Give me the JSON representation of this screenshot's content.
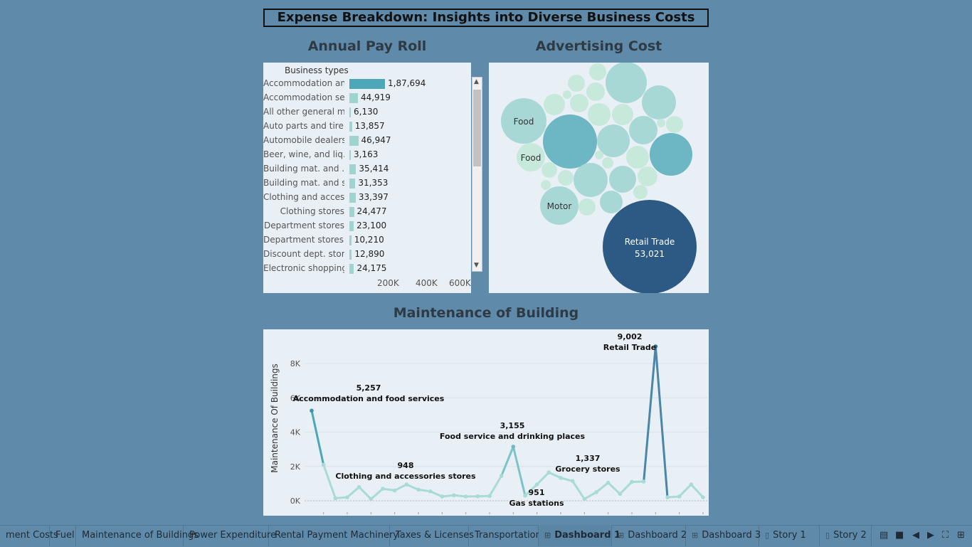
{
  "title": "Expense Breakdown: Insights into Diverse Business Costs",
  "payroll": {
    "title": "Annual Pay Roll",
    "header": "Business types",
    "axis_ticks": [
      "200K",
      "400K",
      "600K"
    ],
    "rows": [
      {
        "label": "Accommodation an..",
        "value": 187694,
        "text": "1,87,694"
      },
      {
        "label": "Accommodation se..",
        "value": 44919,
        "text": "44,919"
      },
      {
        "label": "All other general m..",
        "value": 6130,
        "text": "6,130"
      },
      {
        "label": "Auto parts and tire..",
        "value": 13857,
        "text": "13,857"
      },
      {
        "label": "Automobile dealers",
        "value": 46947,
        "text": "46,947"
      },
      {
        "label": "Beer, wine, and liq..",
        "value": 3163,
        "text": "3,163"
      },
      {
        "label": "Building mat. and ..",
        "value": 35414,
        "text": "35,414"
      },
      {
        "label": "Building mat. and s..",
        "value": 31353,
        "text": "31,353"
      },
      {
        "label": "Clothing and acces..",
        "value": 33397,
        "text": "33,397"
      },
      {
        "label": "Clothing stores",
        "value": 24477,
        "text": "24,477"
      },
      {
        "label": "Department stores",
        "value": 23100,
        "text": "23,100"
      },
      {
        "label": "Department stores..",
        "value": 10210,
        "text": "10,210"
      },
      {
        "label": "Discount dept. stor..",
        "value": 12890,
        "text": "12,890"
      },
      {
        "label": "Electronic shopping",
        "value": 24175,
        "text": "24,175"
      }
    ],
    "colors": {
      "highlight": "#4ea6b9",
      "bar": "#9fd3cd"
    }
  },
  "advertising": {
    "title": "Advertising Cost",
    "labels": {
      "food1": "Food",
      "food2": "Food",
      "motor": "Motor",
      "retail": "Retail Trade",
      "retail_value": "53,021"
    },
    "colors": {
      "dark": "#2d5a85",
      "mid": "#6db6c4",
      "light": "#a8d8d6",
      "pale": "#c7e9dc"
    }
  },
  "maintenance": {
    "title": "Maintenance of Building",
    "ylabel": "Maintenance Of Buildings",
    "yticks": [
      "0K",
      "2K",
      "4K",
      "6K",
      "8K"
    ],
    "annotations": {
      "accommodation_value": "5,257",
      "accommodation_label": "Accommodation and food services",
      "clothing_value": "948",
      "clothing_label": "Clothing and accessories stores",
      "food_value": "3,155",
      "food_label": "Food service and drinking places",
      "gas_value": "951",
      "gas_label": "Gas stations",
      "grocery_value": "1,337",
      "grocery_label": "Grocery stores",
      "retail_value": "9,002",
      "retail_label": "Retail Trade"
    }
  },
  "chart_data": [
    {
      "type": "bar",
      "title": "Annual Pay Roll",
      "categories": [
        "Accommodation an..",
        "Accommodation se..",
        "All other general m..",
        "Auto parts and tire..",
        "Automobile dealers",
        "Beer, wine, and liq..",
        "Building mat. and ..",
        "Building mat. and s..",
        "Clothing and acces..",
        "Clothing stores",
        "Department stores",
        "Department stores..",
        "Discount dept. stor..",
        "Electronic shopping"
      ],
      "values": [
        187694,
        44919,
        6130,
        13857,
        46947,
        3163,
        35414,
        31353,
        33397,
        24477,
        23100,
        10210,
        12890,
        24175
      ],
      "ylabel": "Business types",
      "xlim": [
        0,
        650000
      ]
    },
    {
      "type": "line",
      "title": "Maintenance of Building",
      "ylabel": "Maintenance Of Buildings",
      "ylim": [
        0,
        9500
      ],
      "values": [
        5257,
        2100,
        150,
        200,
        800,
        100,
        700,
        600,
        948,
        650,
        550,
        250,
        320,
        250,
        260,
        280,
        1450,
        3155,
        300,
        951,
        1650,
        1337,
        1150,
        100,
        500,
        1050,
        400,
        1100,
        1120,
        9002,
        200,
        250,
        950,
        200
      ]
    }
  ],
  "tabs": [
    {
      "label": "ment Costs",
      "icon": ""
    },
    {
      "label": "Fuel",
      "icon": ""
    },
    {
      "label": "Maintenance of Buildings",
      "icon": ""
    },
    {
      "label": "Power Expenditure",
      "icon": ""
    },
    {
      "label": "Rental Payment Machinery",
      "icon": ""
    },
    {
      "label": "Taxes & Licenses",
      "icon": ""
    },
    {
      "label": "Transportation",
      "icon": ""
    },
    {
      "label": "Dashboard 1",
      "icon": "grid-icon"
    },
    {
      "label": "Dashboard 2",
      "icon": "grid-icon"
    },
    {
      "label": "Dashboard 3",
      "icon": "grid-icon"
    },
    {
      "label": "Story 1",
      "icon": "book-icon"
    },
    {
      "label": "Story 2",
      "icon": "book-icon"
    }
  ]
}
